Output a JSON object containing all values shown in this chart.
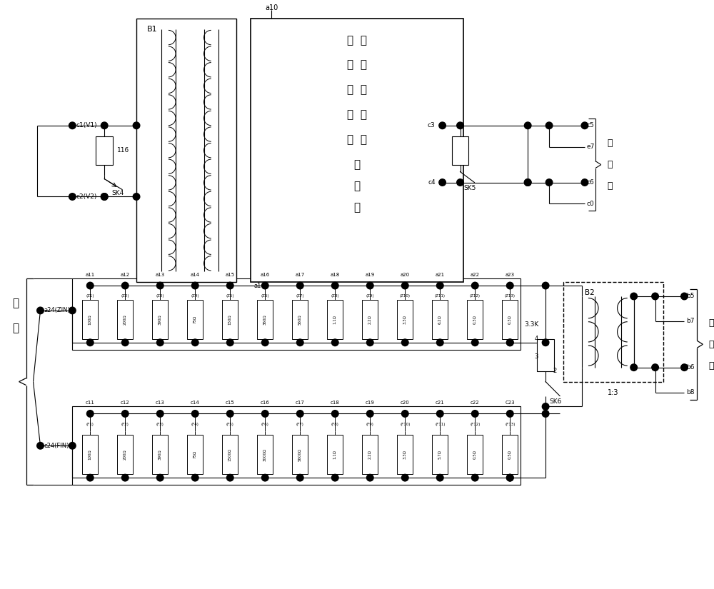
{
  "bg_color": "#ffffff",
  "fig_w": 10.0,
  "fig_h": 8.25,
  "title_lines": [
    "主  继",
    "轨  电",
    "接  器",
    "收  阵",
    "电  列",
    "平",
    "控",
    "制"
  ],
  "a_names": [
    "a11",
    "a12",
    "a13",
    "a14",
    "a15",
    "a16",
    "a17",
    "a18",
    "a19",
    "a20",
    "a21",
    "a22",
    "a23"
  ],
  "z_labels": [
    "(Z1)",
    "(Z2)",
    "(Z3)",
    "(Z4)",
    "(Z5)",
    "(Z6)",
    "(Z7)",
    "(Z8)",
    "(Z9)",
    "(Z10)",
    "(Z11)",
    "(Z12)",
    "(Z13)"
  ],
  "z_values": [
    "100Ω",
    "200Ω",
    "390Ω",
    "75Ω",
    "150Ω",
    "360Ω",
    "560Ω",
    "1.1Ω",
    "2.2Ω",
    "3.3Ω",
    "6.2Ω",
    "0.3Ω",
    "0.3Ω"
  ],
  "c_names": [
    "c11",
    "c12",
    "c13",
    "c14",
    "c15",
    "c16",
    "c17",
    "c18",
    "c19",
    "c20",
    "c21",
    "c22",
    "C23"
  ],
  "f_labels": [
    "(F1)",
    "(F2)",
    "(F3)",
    "(F4)",
    "(F5)",
    "(F6)",
    "(F7)",
    "(F8)",
    "(F9)",
    "(F10)",
    "(F11)",
    "(F12)",
    "(F13)"
  ],
  "f_values": [
    "100Ω",
    "200Ω",
    "390Ω",
    "75Ω",
    "1500Ω",
    "3000Ω",
    "5600Ω",
    "1.1Ω",
    "2.2Ω",
    "3.3Ω",
    "5.7Ω",
    "0.5Ω",
    "0.5Ω"
  ]
}
